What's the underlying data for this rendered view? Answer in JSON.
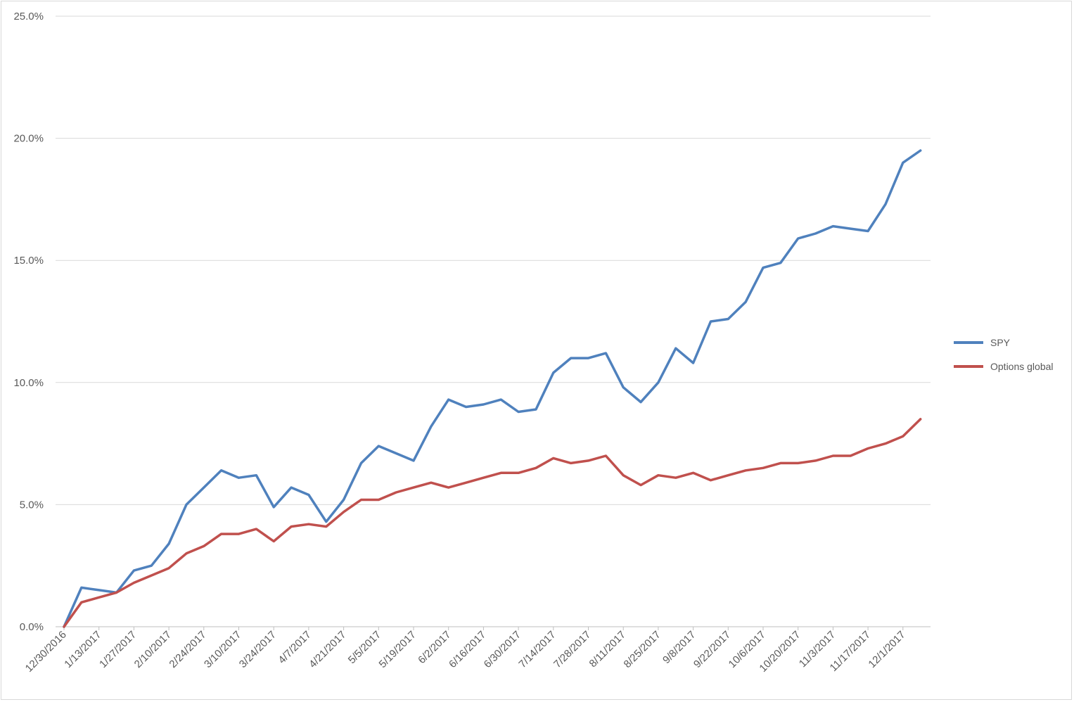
{
  "chart_data": {
    "type": "line",
    "title": "",
    "xlabel": "",
    "ylabel": "",
    "ylim": [
      0,
      25
    ],
    "y_ticks": [
      "0.0%",
      "5.0%",
      "10.0%",
      "15.0%",
      "20.0%",
      "25.0%"
    ],
    "y_tick_values": [
      0,
      5,
      10,
      15,
      20,
      25
    ],
    "grid": "horizontal",
    "legend_position": "right",
    "x_tick_labels": [
      "12/30/2016",
      "1/13/2017",
      "1/27/2017",
      "2/10/2017",
      "2/24/2017",
      "3/10/2017",
      "3/24/2017",
      "4/7/2017",
      "4/21/2017",
      "5/5/2017",
      "5/19/2017",
      "6/2/2017",
      "6/16/2017",
      "6/30/2017",
      "7/14/2017",
      "7/28/2017",
      "8/11/2017",
      "8/25/2017",
      "9/8/2017",
      "9/22/2017",
      "10/6/2017",
      "10/20/2017",
      "11/3/2017",
      "11/17/2017",
      "12/1/2017"
    ],
    "x": [
      "12/30/2016",
      "1/6/2017",
      "1/13/2017",
      "1/20/2017",
      "1/27/2017",
      "2/3/2017",
      "2/10/2017",
      "2/17/2017",
      "2/24/2017",
      "3/3/2017",
      "3/10/2017",
      "3/17/2017",
      "3/24/2017",
      "3/31/2017",
      "4/7/2017",
      "4/14/2017",
      "4/21/2017",
      "4/28/2017",
      "5/5/2017",
      "5/12/2017",
      "5/19/2017",
      "5/26/2017",
      "6/2/2017",
      "6/9/2017",
      "6/16/2017",
      "6/23/2017",
      "6/30/2017",
      "7/7/2017",
      "7/14/2017",
      "7/21/2017",
      "7/28/2017",
      "8/4/2017",
      "8/11/2017",
      "8/18/2017",
      "8/25/2017",
      "9/1/2017",
      "9/8/2017",
      "9/15/2017",
      "9/22/2017",
      "9/29/2017",
      "10/6/2017",
      "10/13/2017",
      "10/20/2017",
      "10/27/2017",
      "11/3/2017",
      "11/10/2017",
      "11/17/2017",
      "11/24/2017",
      "12/1/2017",
      "12/8/2017"
    ],
    "series": [
      {
        "name": "SPY",
        "color": "#4f81bd",
        "values": [
          0.0,
          1.6,
          1.5,
          1.4,
          2.3,
          2.5,
          3.4,
          5.0,
          5.7,
          6.4,
          6.1,
          6.2,
          4.9,
          5.7,
          5.4,
          4.3,
          5.2,
          6.7,
          7.4,
          7.1,
          6.8,
          8.2,
          9.3,
          9.0,
          9.1,
          9.3,
          8.8,
          8.9,
          10.4,
          11.0,
          11.0,
          11.2,
          9.8,
          9.2,
          10.0,
          11.4,
          10.8,
          12.5,
          12.6,
          13.3,
          14.7,
          14.9,
          15.9,
          16.1,
          16.4,
          16.3,
          16.2,
          17.3,
          19.0,
          19.5
        ]
      },
      {
        "name": "Options global",
        "color": "#c0504d",
        "values": [
          0.0,
          1.0,
          1.2,
          1.4,
          1.8,
          2.1,
          2.4,
          3.0,
          3.3,
          3.8,
          3.8,
          4.0,
          3.5,
          4.1,
          4.2,
          4.1,
          4.7,
          5.2,
          5.2,
          5.5,
          5.7,
          5.9,
          5.7,
          5.9,
          6.1,
          6.3,
          6.3,
          6.5,
          6.9,
          6.7,
          6.8,
          7.0,
          6.2,
          5.8,
          6.2,
          6.1,
          6.3,
          6.0,
          6.2,
          6.4,
          6.5,
          6.7,
          6.7,
          6.8,
          7.0,
          7.0,
          7.3,
          7.5,
          7.8,
          8.5
        ]
      }
    ]
  }
}
